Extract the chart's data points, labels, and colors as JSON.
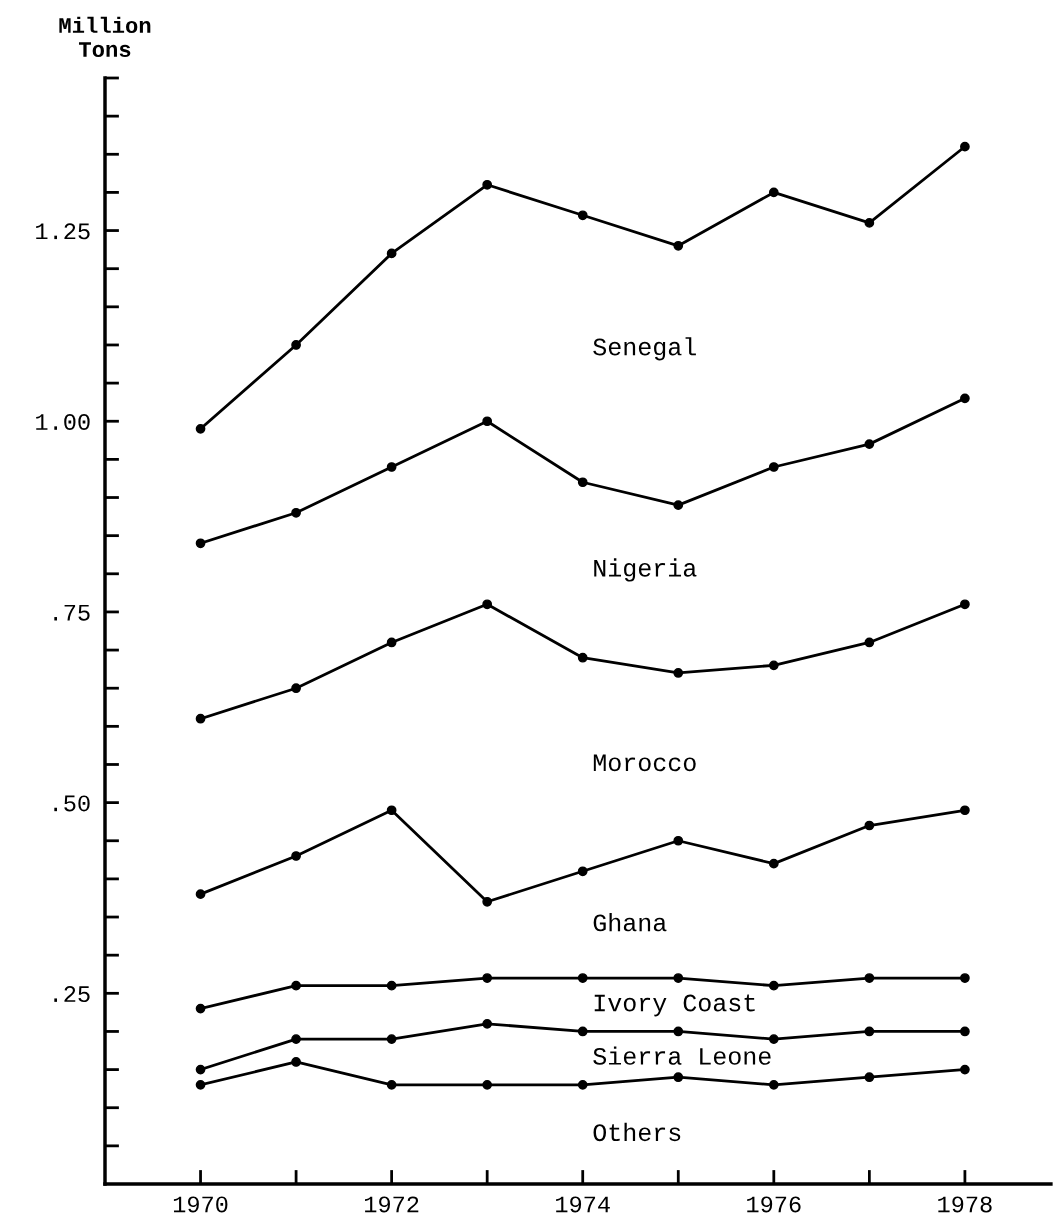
{
  "chart_data": {
    "type": "line",
    "ylabel": "Million Tons",
    "x": [
      1970,
      1971,
      1972,
      1973,
      1974,
      1975,
      1976,
      1977,
      1978
    ],
    "series": [
      {
        "color": "#000000",
        "values": [
          0.99,
          1.1,
          1.22,
          1.31,
          1.27,
          1.23,
          1.3,
          1.26,
          1.36
        ]
      },
      {
        "color": "#000000",
        "values": [
          0.84,
          0.88,
          0.94,
          1.0,
          0.92,
          0.89,
          0.94,
          0.97,
          1.03
        ]
      },
      {
        "color": "#000000",
        "values": [
          0.61,
          0.65,
          0.71,
          0.76,
          0.69,
          0.67,
          0.68,
          0.71,
          0.76
        ]
      },
      {
        "color": "#000000",
        "values": [
          0.38,
          0.43,
          0.49,
          0.37,
          0.41,
          0.45,
          0.42,
          0.47,
          0.49
        ]
      },
      {
        "color": "#000000",
        "values": [
          0.23,
          0.26,
          0.26,
          0.27,
          0.27,
          0.27,
          0.26,
          0.27,
          0.27
        ]
      },
      {
        "color": "#000000",
        "values": [
          0.15,
          0.19,
          0.19,
          0.21,
          0.2,
          0.2,
          0.19,
          0.2,
          0.2
        ]
      },
      {
        "color": "#000000",
        "values": [
          0.13,
          0.16,
          0.13,
          0.13,
          0.13,
          0.14,
          0.13,
          0.14,
          0.15
        ]
      }
    ],
    "annotations": [
      "Senegal",
      "Nigeria",
      "Morocco",
      "Ghana",
      "Ivory Coast",
      "Sierra Leone",
      "Others"
    ],
    "xlim": [
      1969,
      1978.9
    ],
    "ylim": [
      0,
      1.45
    ],
    "xticks": [
      1970,
      {
        "value": 1971,
        "label": null
      },
      1972,
      {
        "value": 1973,
        "label": null
      },
      1974,
      {
        "value": 1975,
        "label": null
      },
      1976,
      {
        "value": 1977,
        "label": null
      },
      1978
    ],
    "yticks": [
      {
        "value": 0.05,
        "label": null
      },
      {
        "value": 0.1,
        "label": null
      },
      {
        "value": 0.15,
        "label": null
      },
      {
        "value": 0.2,
        "label": null
      },
      {
        "value": 0.25,
        "label": ".25"
      },
      {
        "value": 0.3,
        "label": null
      },
      {
        "value": 0.35,
        "label": null
      },
      {
        "value": 0.4,
        "label": null
      },
      {
        "value": 0.45,
        "label": null
      },
      {
        "value": 0.5,
        "label": ".50"
      },
      {
        "value": 0.55,
        "label": null
      },
      {
        "value": 0.6,
        "label": null
      },
      {
        "value": 0.65,
        "label": null
      },
      {
        "value": 0.7,
        "label": null
      },
      {
        "value": 0.75,
        "label": ".75"
      },
      {
        "value": 0.8,
        "label": null
      },
      {
        "value": 0.85,
        "label": null
      },
      {
        "value": 0.9,
        "label": null
      },
      {
        "value": 0.95,
        "label": null
      },
      {
        "value": 1.0,
        "label": "1.00"
      },
      {
        "value": 1.05,
        "label": null
      },
      {
        "value": 1.1,
        "label": null
      },
      {
        "value": 1.15,
        "label": null
      },
      {
        "value": 1.2,
        "label": null
      },
      {
        "value": 1.25,
        "label": "1.25"
      },
      {
        "value": 1.3,
        "label": null
      },
      {
        "value": 1.35,
        "label": null
      },
      {
        "value": 1.4,
        "label": null
      },
      {
        "value": 1.45,
        "label": null
      }
    ],
    "grid": false,
    "marker": "circle",
    "line_style": "solid"
  }
}
